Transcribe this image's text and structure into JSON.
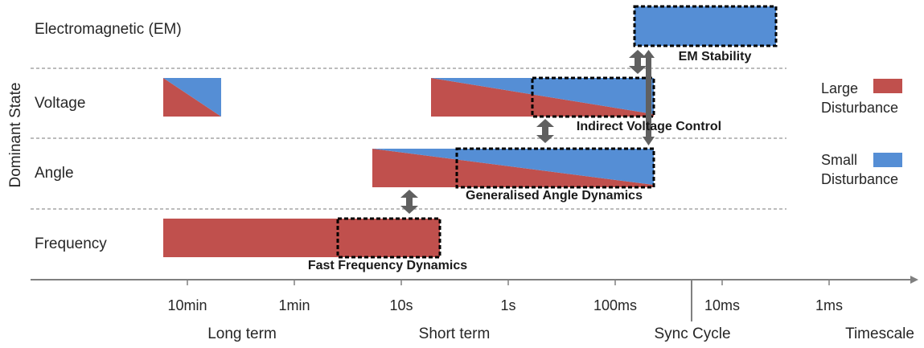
{
  "y_axis_label": "Dominant State",
  "rows": [
    "Electromagnetic (EM)",
    "Voltage",
    "Angle",
    "Frequency"
  ],
  "axis": {
    "ticks": [
      "10min",
      "1min",
      "10s",
      "1s",
      "100ms",
      "10ms",
      "1ms"
    ],
    "regions": [
      "Long term",
      "Short term",
      "Sync Cycle",
      "Timescale"
    ]
  },
  "legend": {
    "large": {
      "line1": "Large",
      "line2": "Disturbance",
      "color": "#c0504d"
    },
    "small": {
      "line1": "Small",
      "line2": "Disturbance",
      "color": "#558ed5"
    }
  },
  "focus_areas": {
    "em_stability": "EM Stability",
    "indirect_voltage": "Indirect Voltage Control",
    "generalised_angle": "Generalised Angle Dynamics",
    "fast_frequency": "Fast Frequency Dynamics"
  },
  "colors": {
    "large": "#c0504d",
    "small": "#558ed5",
    "arrow": "#606060",
    "grid": "#a6a6a6",
    "axis": "#808080"
  }
}
